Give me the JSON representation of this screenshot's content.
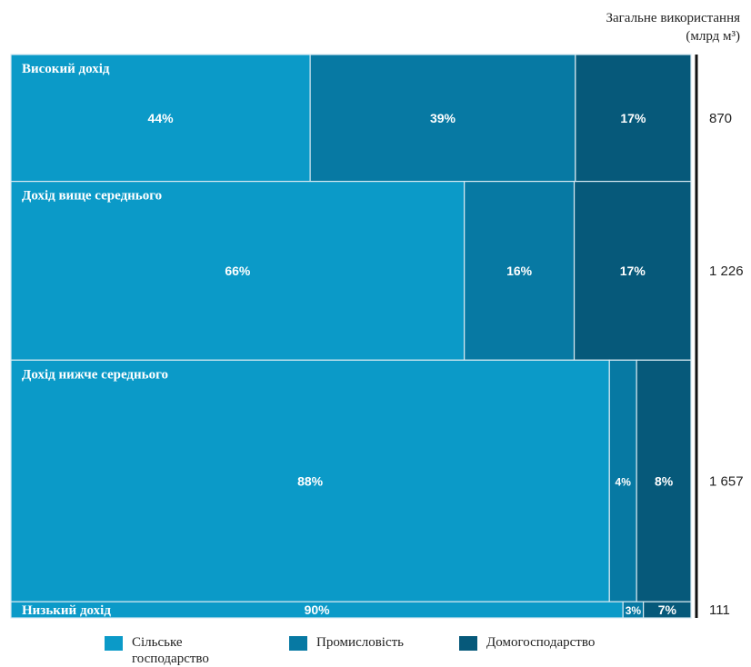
{
  "header": {
    "total_title": "Загальне використання",
    "total_unit": "(млрд м³)"
  },
  "colors": {
    "agriculture": "#0b9ac8",
    "industry": "#0779a3",
    "domestic": "#06597a",
    "separator": "#d8eaf2",
    "bar_text": "#ffffff",
    "total_bar": "#111111"
  },
  "legend": {
    "agriculture": "Сільське господарство",
    "industry": "Промисловість",
    "domestic": "Домогосподарство"
  },
  "chart_data": {
    "type": "mekko",
    "title": "",
    "categories": [
      "Високий дохід",
      "Дохід вище середнього",
      "Дохід нижче середнього",
      "Низький дохід"
    ],
    "totals": [
      870,
      1226,
      1657,
      111
    ],
    "total_labels": [
      "870",
      "1 226",
      "1 657",
      "111"
    ],
    "series": [
      {
        "name": "Сільське господарство",
        "values": [
          44,
          66,
          88,
          90
        ],
        "labels": [
          "44%",
          "66%",
          "88%",
          "90%"
        ]
      },
      {
        "name": "Промисловість",
        "values": [
          39,
          16,
          4,
          3
        ],
        "labels": [
          "39%",
          "16%",
          "4%",
          "3%"
        ]
      },
      {
        "name": "Домогосподарство",
        "values": [
          17,
          17,
          8,
          7
        ],
        "labels": [
          "17%",
          "17%",
          "8%",
          "7%"
        ]
      }
    ]
  }
}
